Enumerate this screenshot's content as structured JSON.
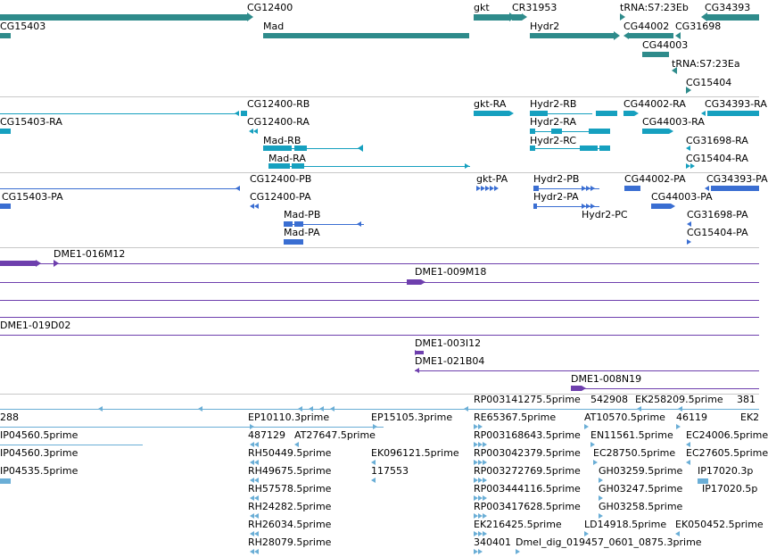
{
  "colors": {
    "gene": "#2e8b8b",
    "transcript": "#16a0bf",
    "protein": "#3a6ed2",
    "clone": "#6e3fad",
    "est": "#6aaed6",
    "separator": "#c8c8c8"
  },
  "tracks": {
    "gene": {
      "labels": [
        "CG12400",
        "gkt",
        "CR31953",
        "tRNA:S7:23Eb",
        "CG34393",
        "CG15403",
        "Mad",
        "Hydr2",
        "CG44002",
        "CG31698",
        "CG44003",
        "tRNA:S7:23Ea",
        "CG15404"
      ]
    },
    "transcript": {
      "labels": [
        "CG12400-RB",
        "gkt-RA",
        "Hydr2-RB",
        "CG44002-RA",
        "CG34393-RA",
        "CG15403-RA",
        "CG12400-RA",
        "Hydr2-RA",
        "CG44003-RA",
        "Mad-RB",
        "Hydr2-RC",
        "CG31698-RA",
        "Mad-RA",
        "CG15404-RA"
      ]
    },
    "protein": {
      "labels": [
        "CG12400-PB",
        "gkt-PA",
        "Hydr2-PB",
        "CG44002-PA",
        "CG34393-PA",
        "CG15403-PA",
        "CG12400-PA",
        "Hydr2-PA",
        "CG44003-PA",
        "Mad-PB",
        "Hydr2-PC",
        "CG31698-PA",
        "Mad-PA",
        "CG15404-PA"
      ]
    },
    "clone": {
      "labels": [
        "DME1-016M12",
        "DME1-009M18",
        "DME1-019D02",
        "DME1-003I12",
        "DME1-021B04",
        "DME1-008N19"
      ]
    },
    "est": {
      "labels": [
        "RP003141275.5prime",
        "542908",
        "EK258209.5prime",
        "381",
        "288",
        "EP10110.3prime",
        "EP15105.3prime",
        "RE65367.5prime",
        "AT10570.5prime",
        "46119",
        "EK2",
        "IP04560.5prime",
        "487129",
        "AT27647.5prime",
        "RP003168643.5prime",
        "EN11561.5prime",
        "EC24006.5prime",
        "IP04560.3prime",
        "RH50449.5prime",
        "RP003042379.5prime",
        "EC28750.5prime",
        "EC27605.5prime",
        "IP04535.5prime",
        "EK096121.5prime",
        "IP17020.3p",
        "RH49675.5prime",
        "117553",
        "RP003272769.5prime",
        "GH03259.5prime",
        "IP17020.5p",
        "RH57578.5prime",
        "RP003444116.5prime",
        "GH03247.5prime",
        "RH24282.5prime",
        "RP003417628.5prime",
        "GH03258.5prime",
        "RH26034.5prime",
        "EK216425.5prime",
        "LD14918.5prime",
        "EK050452.5prime",
        "RH28079.5prime",
        "340401",
        "Dmel_dig_019457_0601_0875.3prime"
      ]
    }
  }
}
